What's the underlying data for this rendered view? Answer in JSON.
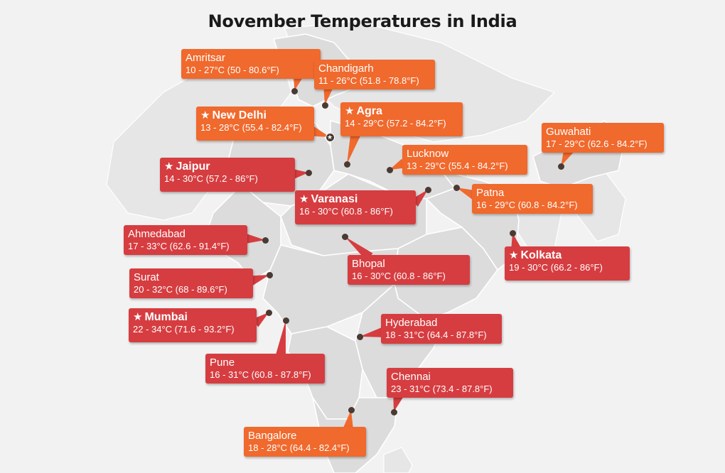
{
  "title": "November Temperatures in India",
  "colors": {
    "hot": "#d63d40",
    "warm": "#f0692d",
    "land": "#dcdcdc",
    "border": "#ffffff",
    "dot": "#4a3a33"
  },
  "cities": [
    {
      "id": "amritsar",
      "name": "Amritsar",
      "temp": "10 - 27°C (50 - 80.6°F)",
      "color": "warm",
      "capital": false
    },
    {
      "id": "chandigarh",
      "name": "Chandigarh",
      "temp": "11 - 26°C (51.8 - 78.8°F)",
      "color": "warm",
      "capital": false
    },
    {
      "id": "new-delhi",
      "name": "New Delhi",
      "temp": "13 - 28°C (55.4 - 82.4°F)",
      "color": "warm",
      "capital": true
    },
    {
      "id": "agra",
      "name": "Agra",
      "temp": "14 - 29°C (57.2 - 84.2°F)",
      "color": "warm",
      "capital": true
    },
    {
      "id": "guwahati",
      "name": "Guwahati",
      "temp": "17 - 29°C (62.6 - 84.2°F)",
      "color": "warm",
      "capital": false
    },
    {
      "id": "jaipur",
      "name": "Jaipur",
      "temp": "14 - 30°C (57.2 - 86°F)",
      "color": "hot",
      "capital": true
    },
    {
      "id": "lucknow",
      "name": "Lucknow",
      "temp": "13 - 29°C (55.4 - 84.2°F)",
      "color": "warm",
      "capital": false
    },
    {
      "id": "varanasi",
      "name": "Varanasi",
      "temp": "16 - 30°C (60.8 - 86°F)",
      "color": "hot",
      "capital": true
    },
    {
      "id": "patna",
      "name": "Patna",
      "temp": "16 - 29°C (60.8 - 84.2°F)",
      "color": "warm",
      "capital": false
    },
    {
      "id": "ahmedabad",
      "name": "Ahmedabad",
      "temp": "17 - 33°C (62.6 - 91.4°F)",
      "color": "hot",
      "capital": false
    },
    {
      "id": "kolkata",
      "name": "Kolkata",
      "temp": "19 - 30°C (66.2 - 86°F)",
      "color": "hot",
      "capital": true
    },
    {
      "id": "bhopal",
      "name": "Bhopal",
      "temp": "16 - 30°C (60.8 - 86°F)",
      "color": "hot",
      "capital": false
    },
    {
      "id": "surat",
      "name": "Surat",
      "temp": "20 - 32°C (68 - 89.6°F)",
      "color": "hot",
      "capital": false
    },
    {
      "id": "mumbai",
      "name": "Mumbai",
      "temp": "22 - 34°C (71.6 - 93.2°F)",
      "color": "hot",
      "capital": true
    },
    {
      "id": "hyderabad",
      "name": "Hyderabad",
      "temp": "18 - 31°C (64.4 - 87.8°F)",
      "color": "hot",
      "capital": false
    },
    {
      "id": "pune",
      "name": "Pune",
      "temp": "16 - 31°C (60.8 - 87.8°F)",
      "color": "hot",
      "capital": false
    },
    {
      "id": "chennai",
      "name": "Chennai",
      "temp": "23 - 31°C (73.4 - 87.8°F)",
      "color": "hot",
      "capital": false
    },
    {
      "id": "bangalore",
      "name": "Bangalore",
      "temp": "18 - 28°C (64.4 - 82.4°F)",
      "color": "warm",
      "capital": false
    }
  ]
}
